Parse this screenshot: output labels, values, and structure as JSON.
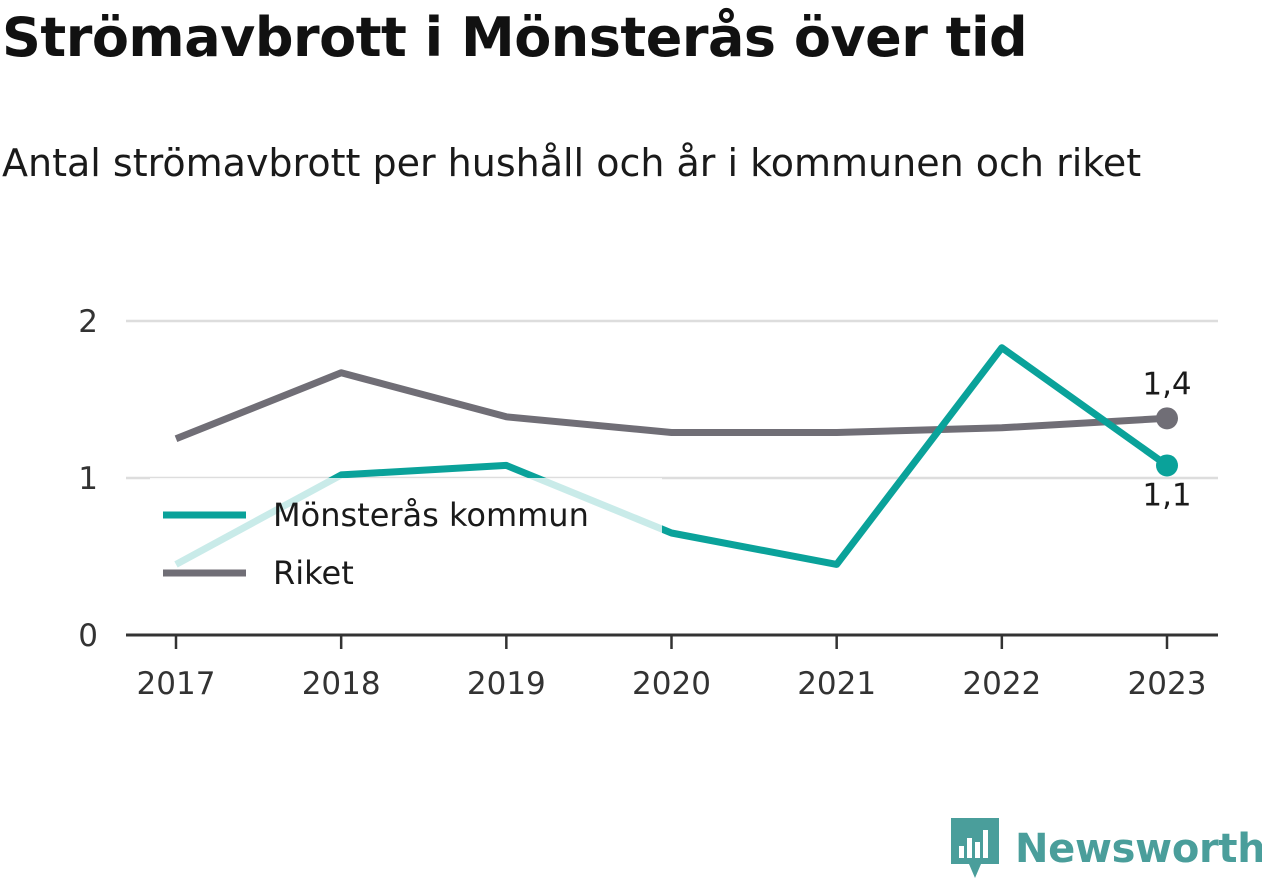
{
  "header": {
    "title": "Strömavbrott i Mönsterås över tid",
    "subtitle": "Antal strömavbrott per hushåll och år i kommunen och riket"
  },
  "brand": {
    "name": "Newsworthy",
    "icon": "bar-chart-logo-icon",
    "color": "#4a9e9b"
  },
  "chart_data": {
    "type": "line",
    "x": [
      "2017",
      "2018",
      "2019",
      "2020",
      "2021",
      "2022",
      "2023"
    ],
    "yticks": [
      0,
      1,
      2
    ],
    "ylim": [
      0,
      2
    ],
    "grid": true,
    "legend_position": "left",
    "series": [
      {
        "name": "Mönsterås kommun",
        "color": "#0aa29a",
        "values": [
          0.45,
          1.02,
          1.08,
          0.65,
          0.45,
          1.83,
          1.08
        ],
        "end_label": "1,1"
      },
      {
        "name": "Riket",
        "color": "#706e76",
        "values": [
          1.25,
          1.67,
          1.39,
          1.29,
          1.29,
          1.32,
          1.38
        ],
        "end_label": "1,4"
      }
    ]
  }
}
